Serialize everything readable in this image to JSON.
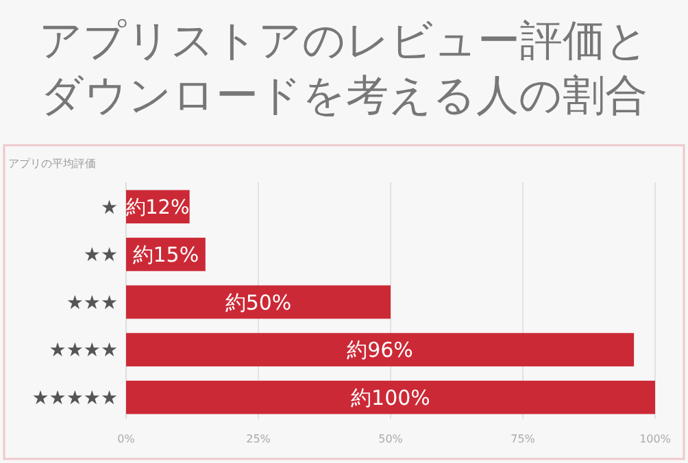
{
  "chart_data": {
    "type": "bar",
    "orientation": "horizontal",
    "title": "アプリストアのレビュー評価とダウンロードを考える人の割合",
    "ylabel": "アプリの平均評価",
    "categories": [
      "★",
      "★★",
      "★★★",
      "★★★★",
      "★★★★★"
    ],
    "values": [
      12,
      15,
      50,
      96,
      100
    ],
    "value_labels": [
      "約12%",
      "約15%",
      "約50%",
      "約96%",
      "約100%"
    ],
    "color": "#cc2936",
    "xlim": [
      0,
      100
    ],
    "xticks": [
      {
        "value": 0,
        "label": "0%"
      },
      {
        "value": 25,
        "label": "25%"
      },
      {
        "value": 50,
        "label": "50%"
      },
      {
        "value": 75,
        "label": "75%"
      },
      {
        "value": 100,
        "label": "100%"
      }
    ],
    "grid": "x"
  }
}
